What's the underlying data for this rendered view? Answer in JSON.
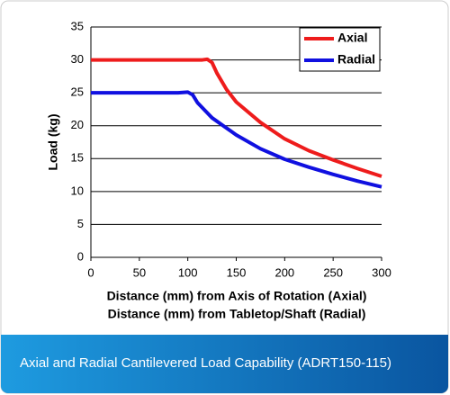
{
  "chart_data": {
    "type": "line",
    "x_label": [
      "Distance (mm) from Axis of Rotation (Axial)",
      "Distance (mm) from Tabletop/Shaft (Radial)"
    ],
    "y_label": "Load (kg)",
    "series": [
      {
        "name": "Axial",
        "color": "#ee1c1c",
        "x": [
          0,
          50,
          100,
          115,
          120,
          125,
          130,
          140,
          150,
          175,
          200,
          225,
          250,
          275,
          300
        ],
        "values": [
          30,
          30,
          30,
          30,
          30.1,
          29.6,
          28,
          25.5,
          23.6,
          20.5,
          18,
          16.2,
          14.8,
          13.5,
          12.3
        ]
      },
      {
        "name": "Radial",
        "color": "#1010e0",
        "x": [
          0,
          50,
          90,
          100,
          105,
          110,
          125,
          150,
          175,
          200,
          225,
          250,
          275,
          300
        ],
        "values": [
          25,
          25,
          25,
          25.1,
          24.7,
          23.5,
          21.2,
          18.6,
          16.5,
          14.9,
          13.7,
          12.6,
          11.6,
          10.7
        ]
      }
    ],
    "xlim": [
      0,
      300
    ],
    "xticks": [
      0,
      50,
      100,
      150,
      200,
      250,
      300
    ],
    "ylim": [
      0,
      35
    ],
    "yticks": [
      0,
      5,
      10,
      15,
      20,
      25,
      30,
      35
    ],
    "grid": true,
    "legend": "top-right"
  },
  "caption": "Axial and Radial Cantilevered Load Capability (ADRT150-115)"
}
